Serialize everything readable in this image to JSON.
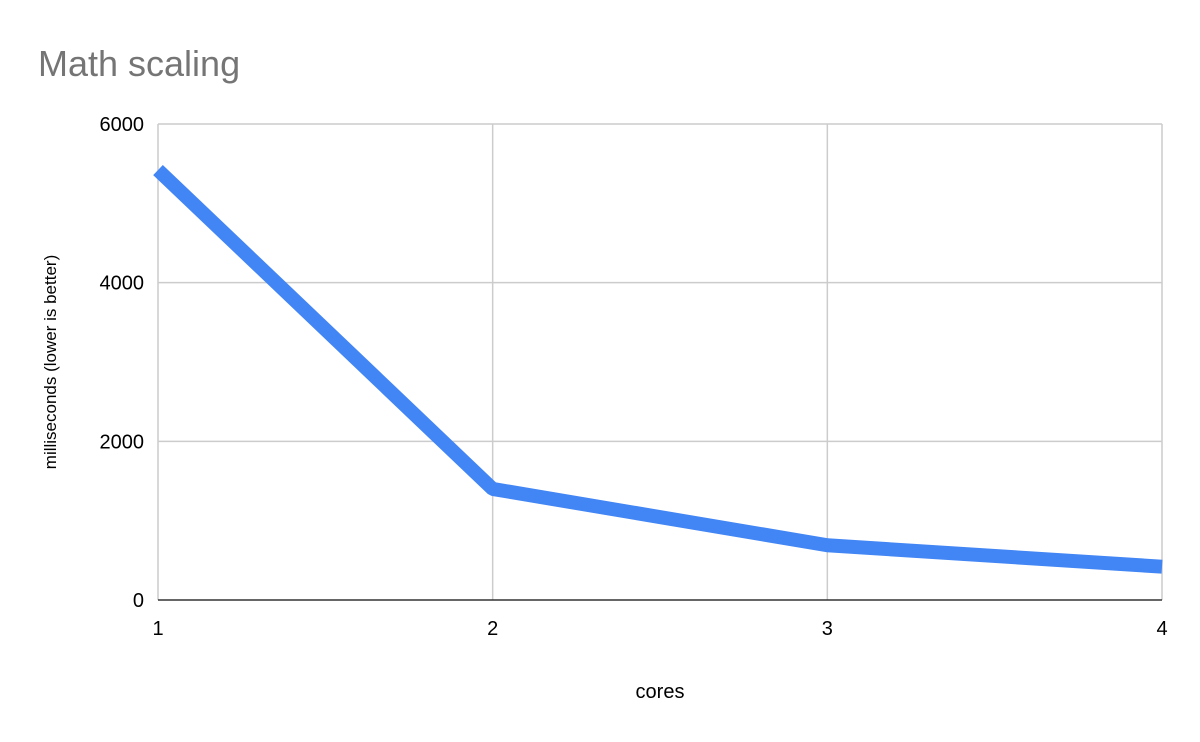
{
  "chart_data": {
    "type": "line",
    "title": "Math scaling",
    "xlabel": "cores",
    "ylabel": "milliseconds (lower is better)",
    "x": [
      1,
      2,
      3,
      4
    ],
    "series": [
      {
        "values": [
          5420,
          1400,
          690,
          420
        ],
        "color": "#4285f4"
      }
    ],
    "xlim": [
      1,
      4
    ],
    "ylim": [
      0,
      6000
    ],
    "xticks": [
      "1",
      "2",
      "3",
      "4"
    ],
    "yticks": [
      "0",
      "2000",
      "4000",
      "6000"
    ],
    "grid": true,
    "legend": "none"
  }
}
